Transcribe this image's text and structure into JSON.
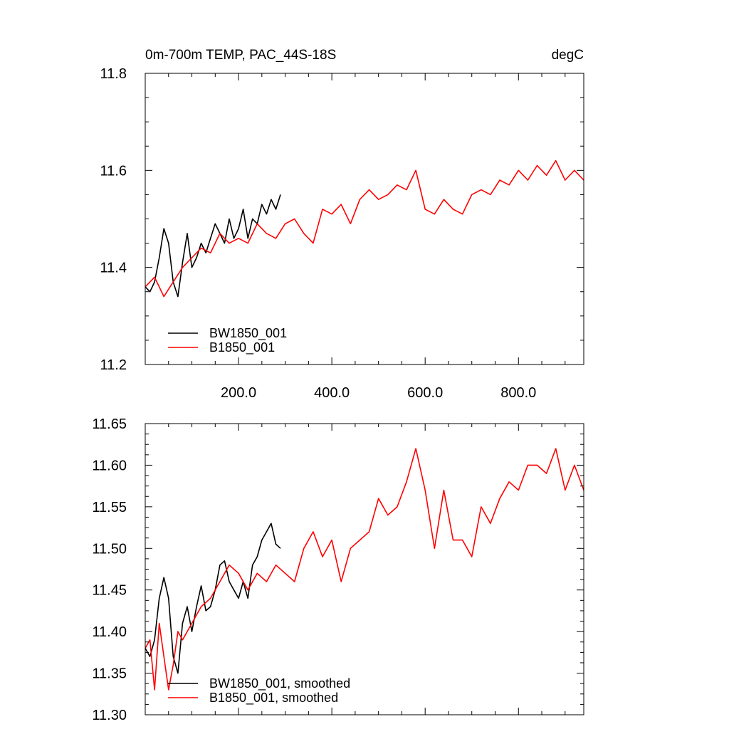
{
  "figure": {
    "top_title_left": "0m-700m TEMP, PAC_44S-18S",
    "top_title_right": "degC"
  },
  "chart_data": [
    {
      "type": "line",
      "title": "0m-700m TEMP, PAC_44S-18S",
      "units": "degC",
      "xlim": [
        0,
        940
      ],
      "ylim": [
        11.2,
        11.8
      ],
      "x_ticks": [
        200,
        400,
        600,
        800
      ],
      "x_tick_labels": [
        "200.0",
        "400.0",
        "600.0",
        "800.0"
      ],
      "y_ticks": [
        11.2,
        11.4,
        11.6,
        11.8
      ],
      "y_tick_labels": [
        "11.2",
        "11.4",
        "11.6",
        "11.8"
      ],
      "legend": {
        "placement": "bottom-left"
      },
      "series": [
        {
          "name": "BW1850_001",
          "color": "#000000",
          "x": [
            0,
            10,
            20,
            30,
            40,
            50,
            60,
            70,
            80,
            90,
            100,
            110,
            120,
            130,
            140,
            150,
            160,
            170,
            180,
            190,
            200,
            210,
            220,
            230,
            240,
            250,
            260,
            270,
            280,
            290
          ],
          "y": [
            11.36,
            11.35,
            11.37,
            11.42,
            11.48,
            11.45,
            11.37,
            11.34,
            11.41,
            11.47,
            11.4,
            11.42,
            11.45,
            11.43,
            11.46,
            11.49,
            11.47,
            11.45,
            11.5,
            11.46,
            11.48,
            11.52,
            11.46,
            11.5,
            11.49,
            11.53,
            11.51,
            11.54,
            11.52,
            11.55
          ]
        },
        {
          "name": "B1850_001",
          "color": "#ff0000",
          "x": [
            0,
            20,
            40,
            60,
            80,
            100,
            120,
            140,
            160,
            180,
            200,
            220,
            240,
            260,
            280,
            300,
            320,
            340,
            360,
            380,
            400,
            420,
            440,
            460,
            480,
            500,
            520,
            540,
            560,
            580,
            600,
            620,
            640,
            660,
            680,
            700,
            720,
            740,
            760,
            780,
            800,
            820,
            840,
            860,
            880,
            900,
            920,
            940
          ],
          "y": [
            11.36,
            11.38,
            11.34,
            11.37,
            11.4,
            11.42,
            11.44,
            11.43,
            11.47,
            11.45,
            11.46,
            11.45,
            11.49,
            11.47,
            11.46,
            11.49,
            11.5,
            11.47,
            11.45,
            11.52,
            11.51,
            11.53,
            11.49,
            11.54,
            11.56,
            11.54,
            11.55,
            11.57,
            11.56,
            11.6,
            11.52,
            11.51,
            11.54,
            11.52,
            11.51,
            11.55,
            11.56,
            11.55,
            11.58,
            11.57,
            11.6,
            11.58,
            11.61,
            11.59,
            11.62,
            11.58,
            11.6,
            11.58
          ]
        }
      ]
    },
    {
      "type": "line",
      "xlim": [
        0,
        940
      ],
      "ylim": [
        11.3,
        11.65
      ],
      "y_ticks": [
        11.3,
        11.35,
        11.4,
        11.45,
        11.5,
        11.55,
        11.6,
        11.65
      ],
      "y_tick_labels": [
        "11.30",
        "11.35",
        "11.40",
        "11.45",
        "11.50",
        "11.55",
        "11.60",
        "11.65"
      ],
      "legend": {
        "placement": "bottom-left"
      },
      "series": [
        {
          "name": "BW1850_001, smoothed",
          "color": "#000000",
          "x": [
            0,
            10,
            20,
            30,
            40,
            50,
            60,
            70,
            80,
            90,
            100,
            110,
            120,
            130,
            140,
            150,
            160,
            170,
            180,
            190,
            200,
            210,
            220,
            230,
            240,
            250,
            260,
            270,
            280,
            290
          ],
          "y": [
            11.38,
            11.37,
            11.39,
            11.44,
            11.465,
            11.44,
            11.37,
            11.35,
            11.41,
            11.43,
            11.4,
            11.43,
            11.455,
            11.425,
            11.43,
            11.45,
            11.48,
            11.485,
            11.46,
            11.45,
            11.44,
            11.46,
            11.44,
            11.48,
            11.49,
            11.51,
            11.52,
            11.53,
            11.505,
            11.5
          ]
        },
        {
          "name": "B1850_001, smoothed",
          "color": "#ff0000",
          "x": [
            0,
            10,
            20,
            30,
            40,
            50,
            60,
            70,
            80,
            90,
            100,
            120,
            140,
            160,
            180,
            200,
            220,
            240,
            260,
            280,
            300,
            320,
            340,
            360,
            380,
            400,
            420,
            440,
            460,
            480,
            500,
            520,
            540,
            560,
            580,
            600,
            620,
            640,
            660,
            680,
            700,
            720,
            740,
            760,
            780,
            800,
            820,
            840,
            860,
            880,
            900,
            920,
            940
          ],
          "y": [
            11.38,
            11.39,
            11.33,
            11.41,
            11.37,
            11.33,
            11.36,
            11.4,
            11.39,
            11.4,
            11.41,
            11.43,
            11.44,
            11.46,
            11.48,
            11.47,
            11.45,
            11.47,
            11.46,
            11.48,
            11.47,
            11.46,
            11.5,
            11.52,
            11.49,
            11.51,
            11.46,
            11.5,
            11.51,
            11.52,
            11.56,
            11.54,
            11.55,
            11.58,
            11.62,
            11.57,
            11.5,
            11.57,
            11.51,
            11.51,
            11.49,
            11.55,
            11.53,
            11.56,
            11.58,
            11.57,
            11.6,
            11.6,
            11.59,
            11.62,
            11.57,
            11.6,
            11.57
          ]
        }
      ]
    }
  ]
}
